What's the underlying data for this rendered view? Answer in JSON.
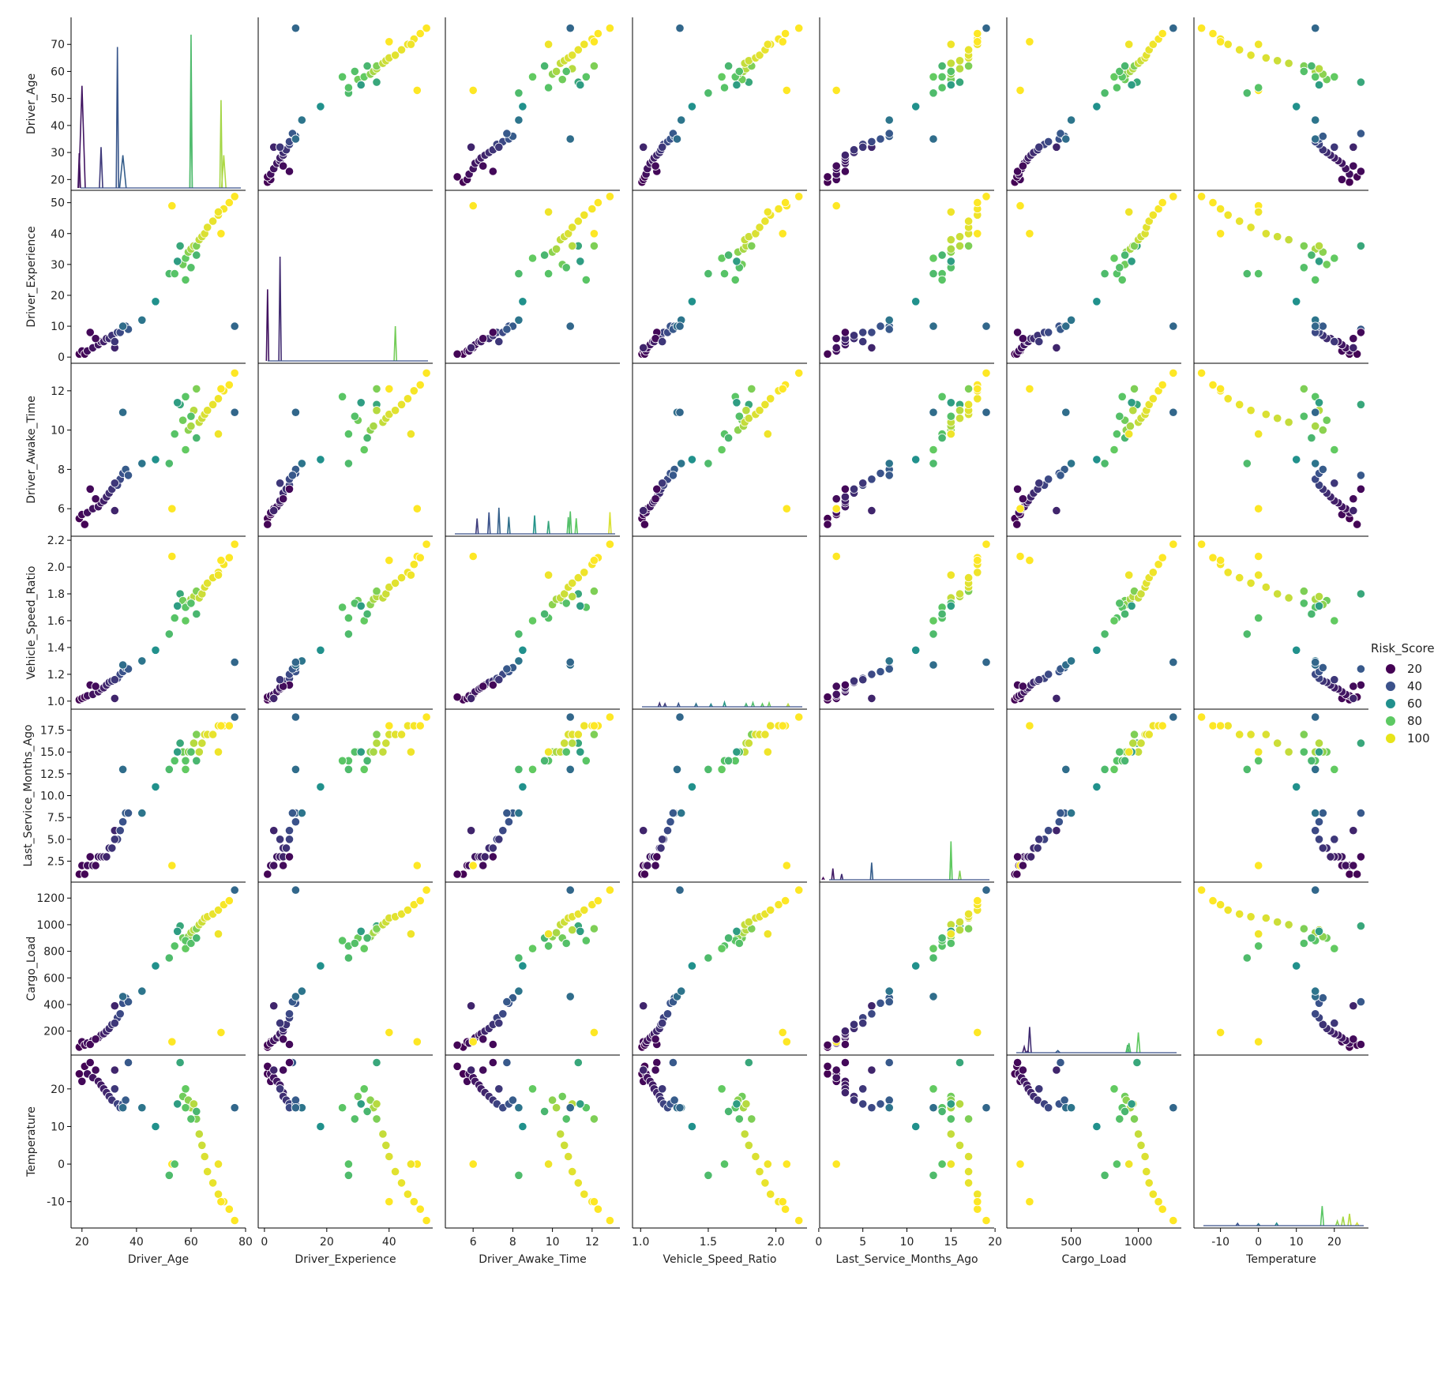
{
  "chart_data": {
    "type": "scatter",
    "subtype": "pairplot",
    "hue": "Risk_Score",
    "diag_kind": "kde",
    "variables": [
      "Driver_Age",
      "Driver_Experience",
      "Driver_Awake_Time",
      "Vehicle_Speed_Ratio",
      "Last_Service_Months_Ago",
      "Cargo_Load",
      "Temperature"
    ],
    "axes": {
      "Driver_Age": {
        "range": [
          16,
          80
        ],
        "ticks": [
          "20",
          "30",
          "40",
          "50",
          "60",
          "70",
          "80"
        ],
        "xticks": [
          "20",
          "40",
          "60",
          "80"
        ],
        "yticks": [
          "20",
          "30",
          "40",
          "50",
          "60",
          "70"
        ]
      },
      "Driver_Experience": {
        "range": [
          -2,
          54
        ],
        "ticks": [
          "0",
          "10",
          "20",
          "30",
          "40",
          "50"
        ],
        "xticks": [
          "0",
          "20",
          "40"
        ],
        "yticks": [
          "0",
          "10",
          "20",
          "30",
          "40",
          "50"
        ]
      },
      "Driver_Awake_Time": {
        "range": [
          4.6,
          13.4
        ],
        "ticks": [
          "6",
          "8",
          "10",
          "12"
        ],
        "xticks": [
          "6",
          "8",
          "10",
          "12"
        ],
        "yticks": [
          "6",
          "8",
          "10",
          "12"
        ]
      },
      "Vehicle_Speed_Ratio": {
        "range": [
          0.94,
          2.23
        ],
        "ticks": [
          "1.0",
          "1.5",
          "2.0"
        ],
        "xticks": [
          "1.0",
          "1.5",
          "2.0"
        ],
        "yticks": [
          "1.0",
          "1.2",
          "1.4",
          "1.6",
          "1.8",
          "2.0",
          "2.2"
        ]
      },
      "Last_Service_Months_Ago": {
        "range": [
          0.1,
          19.9
        ],
        "ticks": [
          "0",
          "5",
          "10",
          "15",
          "20"
        ],
        "xticks": [
          "0",
          "5",
          "10",
          "15",
          "20"
        ],
        "yticks": [
          "2.5",
          "5.0",
          "7.5",
          "10.0",
          "12.5",
          "15.0",
          "17.5"
        ]
      },
      "Cargo_Load": {
        "range": [
          20,
          1320
        ],
        "ticks": [
          "0",
          "500",
          "1000"
        ],
        "xticks": [
          "0",
          "500",
          "1000"
        ],
        "yticks": [
          "200",
          "400",
          "600",
          "800",
          "1000",
          "1200"
        ]
      },
      "Temperature": {
        "range": [
          -17,
          29
        ],
        "ticks": [
          "-10",
          "0",
          "10",
          "20"
        ],
        "xticks": [
          "-10",
          "0",
          "10",
          "20"
        ],
        "yticks": [
          "-10",
          "0",
          "10",
          "20"
        ]
      }
    },
    "points": [
      [
        19,
        1,
        5.5,
        1.01,
        1,
        80,
        24,
        10
      ],
      [
        20,
        2,
        5.7,
        1.02,
        2,
        120,
        22,
        12
      ],
      [
        21,
        1,
        5.2,
        1.03,
        1,
        95,
        26,
        11
      ],
      [
        22,
        2,
        5.8,
        1.04,
        2,
        110,
        24,
        14
      ],
      [
        24,
        3,
        6.0,
        1.05,
        2,
        130,
        23,
        15
      ],
      [
        26,
        4,
        6.1,
        1.07,
        3,
        150,
        22,
        16
      ],
      [
        27,
        5,
        6.3,
        1.09,
        3,
        170,
        21,
        17
      ],
      [
        28,
        5,
        6.4,
        1.1,
        3,
        180,
        20,
        18
      ],
      [
        29,
        6,
        6.6,
        1.12,
        3,
        200,
        19,
        20
      ],
      [
        30,
        6,
        6.8,
        1.14,
        4,
        220,
        18,
        22
      ],
      [
        31,
        7,
        7.0,
        1.15,
        4,
        250,
        17,
        24
      ],
      [
        32,
        3,
        5.9,
        1.02,
        6,
        390,
        25,
        20
      ],
      [
        33,
        8,
        7.2,
        1.17,
        5,
        300,
        16,
        28
      ],
      [
        34,
        8,
        7.5,
        1.2,
        6,
        330,
        15,
        30
      ],
      [
        35,
        10,
        7.8,
        1.22,
        7,
        410,
        16,
        33
      ],
      [
        36,
        10,
        8.0,
        1.25,
        8,
        450,
        17,
        36
      ],
      [
        37,
        9,
        7.7,
        1.24,
        8,
        420,
        27,
        35
      ],
      [
        35,
        10,
        10.9,
        1.27,
        13,
        460,
        15,
        42
      ],
      [
        42,
        12,
        8.3,
        1.3,
        8,
        500,
        15,
        45
      ],
      [
        47,
        18,
        8.5,
        1.38,
        11,
        690,
        10,
        55
      ],
      [
        52,
        27,
        8.3,
        1.5,
        13,
        750,
        -3,
        72
      ],
      [
        53,
        49,
        6.0,
        2.08,
        2,
        120,
        0,
        100
      ],
      [
        54,
        27,
        9.8,
        1.62,
        14,
        840,
        0,
        75
      ],
      [
        56,
        36,
        11.3,
        1.8,
        16,
        990,
        27,
        64
      ],
      [
        57,
        30,
        10.5,
        1.75,
        15,
        900,
        18,
        80
      ],
      [
        58,
        32,
        9.0,
        1.6,
        13,
        820,
        20,
        78
      ],
      [
        59,
        34,
        10.0,
        1.72,
        15,
        910,
        17,
        84
      ],
      [
        60,
        35,
        10.2,
        1.76,
        15,
        940,
        15,
        88
      ],
      [
        61,
        36,
        11.0,
        1.78,
        16,
        960,
        16,
        90
      ],
      [
        62,
        36,
        12.1,
        1.82,
        17,
        970,
        12,
        82
      ],
      [
        63,
        38,
        10.4,
        1.77,
        15,
        1000,
        8,
        92
      ],
      [
        64,
        39,
        10.6,
        1.8,
        16,
        1020,
        5,
        93
      ],
      [
        65,
        40,
        10.8,
        1.85,
        17,
        1050,
        2,
        95
      ],
      [
        66,
        42,
        11.0,
        1.88,
        17,
        1060,
        -2,
        96
      ],
      [
        68,
        44,
        11.3,
        1.92,
        17,
        1080,
        -5,
        97
      ],
      [
        70,
        46,
        11.6,
        1.96,
        18,
        1110,
        -8,
        98
      ],
      [
        72,
        48,
        12.0,
        2.02,
        18,
        1150,
        -10,
        99
      ],
      [
        74,
        50,
        12.3,
        2.07,
        18,
        1180,
        -12,
        100
      ],
      [
        76,
        52,
        12.9,
        2.17,
        19,
        1260,
        -15,
        100
      ],
      [
        58,
        25,
        11.7,
        1.7,
        14,
        880,
        15,
        76
      ],
      [
        60,
        29,
        10.7,
        1.73,
        15,
        860,
        12,
        74
      ],
      [
        62,
        33,
        9.6,
        1.65,
        14,
        900,
        14,
        70
      ],
      [
        55,
        31,
        11.4,
        1.71,
        15,
        950,
        16,
        60
      ],
      [
        71,
        40,
        12.1,
        2.05,
        18,
        190,
        -10,
        100
      ],
      [
        70,
        47,
        9.8,
        1.94,
        15,
        930,
        0,
        98
      ],
      [
        76,
        10,
        10.9,
        1.29,
        19,
        1260,
        15,
        40
      ],
      [
        23,
        8,
        7.0,
        1.12,
        3,
        100,
        27,
        12
      ],
      [
        25,
        6,
        6.5,
        1.11,
        2,
        140,
        25,
        13
      ],
      [
        32,
        5,
        7.3,
        1.16,
        5,
        260,
        20,
        25
      ]
    ],
    "legend": {
      "title": "Risk_Score",
      "entries": [
        "20",
        "40",
        "60",
        "80",
        "100"
      ],
      "placement": "right"
    },
    "colormap": "viridis",
    "colors": {
      "20": "#440154",
      "40": "#3b528b",
      "60": "#21908d",
      "80": "#5dc963",
      "100": "#e7e419"
    },
    "diag_peaks": [
      [
        [
          19,
          17,
          0.07
        ],
        [
          20,
          50,
          0.6
        ],
        [
          27,
          20,
          0.3
        ],
        [
          33,
          69,
          0.2
        ],
        [
          35,
          16,
          0.6
        ],
        [
          60,
          75,
          0.18
        ],
        [
          60,
          45,
          0.18
        ],
        [
          71,
          43,
          0.2
        ],
        [
          72,
          16,
          0.4
        ]
      ],
      [
        [
          1,
          35,
          0.15
        ],
        [
          5,
          51,
          0.15
        ],
        [
          42,
          17,
          0.2
        ]
      ],
      [
        [
          6.2,
          7.5,
          0.03
        ],
        [
          6.8,
          10.5,
          0.03
        ],
        [
          7.3,
          12.8,
          0.03
        ],
        [
          7.8,
          8.3,
          0.03
        ],
        [
          9.1,
          9.0,
          0.03
        ],
        [
          9.8,
          6.3,
          0.03
        ],
        [
          10.8,
          8.2,
          0.03
        ],
        [
          10.9,
          11.0,
          0.03
        ],
        [
          11.2,
          7.6,
          0.03
        ],
        [
          12.9,
          10.6,
          0.03
        ]
      ],
      [
        [
          1.14,
          1.82,
          0.005
        ],
        [
          1.18,
          1.5,
          0.005
        ],
        [
          1.28,
          1.65,
          0.005
        ],
        [
          1.41,
          1.48,
          0.005
        ],
        [
          1.52,
          1.31,
          0.005
        ],
        [
          1.62,
          2.16,
          0.005
        ],
        [
          1.78,
          1.48,
          0.005
        ],
        [
          1.83,
          2.02,
          0.005
        ],
        [
          1.9,
          1.48,
          0.005
        ],
        [
          1.95,
          1.92,
          0.005
        ],
        [
          2.09,
          1.32,
          0.005
        ]
      ],
      [
        [
          0.5,
          1.0,
          0.05
        ],
        [
          1.6,
          5.5,
          0.05
        ],
        [
          2.6,
          2.8,
          0.05
        ],
        [
          6.0,
          8.4,
          0.06
        ],
        [
          15.0,
          18.8,
          0.06
        ],
        [
          15.0,
          14.0,
          0.06
        ],
        [
          16.0,
          4.4,
          0.06
        ]
      ],
      [
        [
          150,
          2.9,
          6
        ],
        [
          190,
          12.6,
          6
        ],
        [
          175,
          0.8,
          6
        ],
        [
          400,
          1.0,
          8
        ],
        [
          920,
          3.8,
          6
        ],
        [
          930,
          4.7,
          6
        ],
        [
          1000,
          9.9,
          6
        ]
      ],
      [
        [
          -5.5,
          1.1,
          0.2
        ],
        [
          0,
          0.9,
          0.2
        ],
        [
          4.8,
          1.2,
          0.2
        ],
        [
          16.8,
          9.6,
          0.2
        ],
        [
          20.8,
          2.2,
          0.2
        ],
        [
          22.3,
          4.4,
          0.2
        ],
        [
          24.0,
          5.8,
          0.2
        ],
        [
          26.0,
          1.3,
          0.2
        ]
      ]
    ]
  }
}
